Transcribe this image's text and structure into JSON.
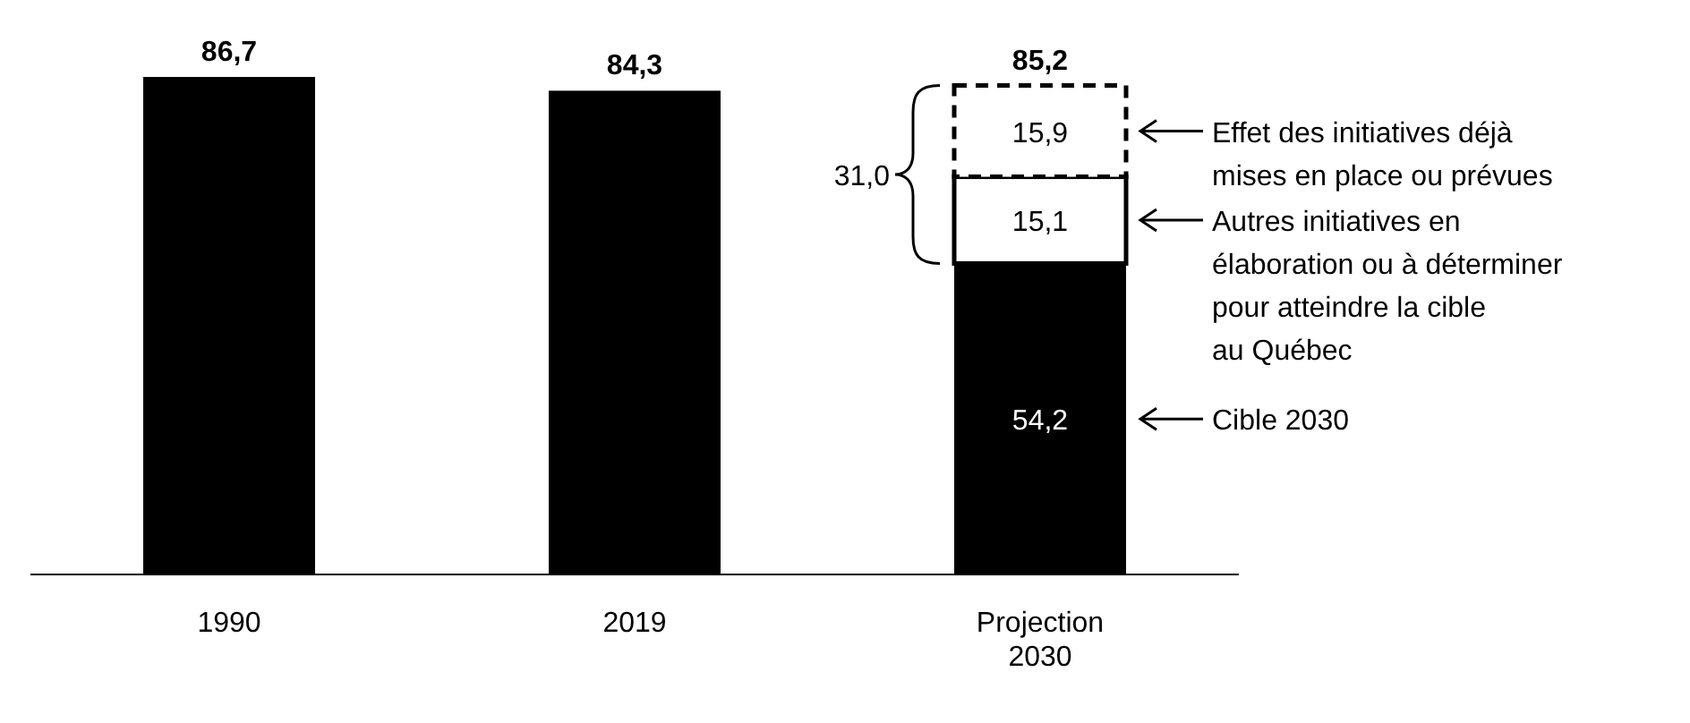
{
  "chart_data": {
    "type": "bar",
    "stacked": true,
    "legend": "right",
    "categories": [
      "1990",
      "2019",
      "Projection\n2030"
    ],
    "series": [
      {
        "name": "Cible 2030",
        "color": "#000000",
        "values": [
          86.7,
          84.3,
          54.2
        ],
        "value_labels": [
          "86,7",
          "84,3",
          "54,2"
        ]
      },
      {
        "name": "Autres initiatives en\nélaboration ou à déterminer\npour atteindre la cible\nau Québec",
        "color": "#ffffff",
        "values": [
          null,
          null,
          15.1
        ],
        "value_labels": [
          null,
          null,
          "15,1"
        ]
      },
      {
        "name": "Effet des initiatives déjà\nmises en place ou prévues",
        "color": "#ffffff",
        "line_style": "dashed",
        "values": [
          null,
          null,
          15.9
        ],
        "value_labels": [
          null,
          null,
          "15,9"
        ]
      }
    ],
    "totals": [
      null,
      null,
      "85,2"
    ],
    "annotations": [
      "31,0"
    ]
  }
}
